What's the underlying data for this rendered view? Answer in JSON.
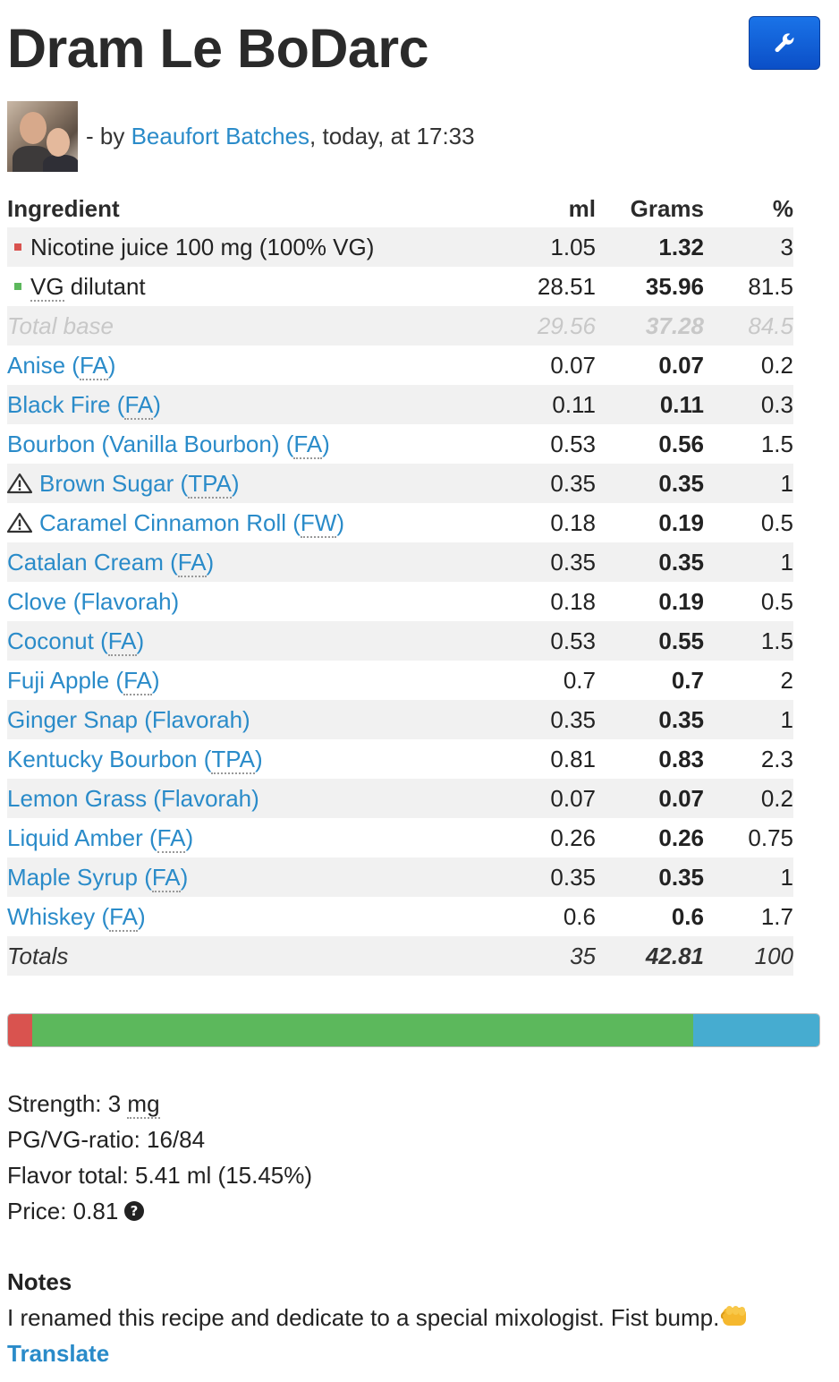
{
  "recipe": {
    "title": "Dram Le BoDarc",
    "by_prefix": "- by",
    "author": "Beaufort Batches",
    "when": ", today, at 17:33"
  },
  "table": {
    "headers": {
      "ingredient": "Ingredient",
      "ml": "ml",
      "grams": "Grams",
      "percent": "%"
    },
    "base_rows": [
      {
        "name": "Nicotine juice 100 mg (100% VG)",
        "ml": "1.05",
        "grams": "1.32",
        "percent": "3",
        "color": "#d9534f"
      },
      {
        "name_pre": "",
        "abbr": "VG",
        "name_post": " dilutant",
        "ml": "28.51",
        "grams": "35.96",
        "percent": "81.5",
        "color": "#5cb85c"
      }
    ],
    "total_base": {
      "label": "Total base",
      "ml": "29.56",
      "grams": "37.28",
      "percent": "84.5"
    },
    "flavors": [
      {
        "name": "Anise",
        "vendor": "FA",
        "ml": "0.07",
        "grams": "0.07",
        "percent": "0.2",
        "warning": false,
        "abbr": true
      },
      {
        "name": "Black Fire",
        "vendor": "FA",
        "ml": "0.11",
        "grams": "0.11",
        "percent": "0.3",
        "warning": false,
        "abbr": true
      },
      {
        "name": "Bourbon (Vanilla Bourbon)",
        "vendor": "FA",
        "ml": "0.53",
        "grams": "0.56",
        "percent": "1.5",
        "warning": false,
        "abbr": true
      },
      {
        "name": "Brown Sugar",
        "vendor": "TPA",
        "ml": "0.35",
        "grams": "0.35",
        "percent": "1",
        "warning": true,
        "abbr": true
      },
      {
        "name": "Caramel Cinnamon Roll",
        "vendor": "FW",
        "ml": "0.18",
        "grams": "0.19",
        "percent": "0.5",
        "warning": true,
        "abbr": true
      },
      {
        "name": "Catalan Cream",
        "vendor": "FA",
        "ml": "0.35",
        "grams": "0.35",
        "percent": "1",
        "warning": false,
        "abbr": true
      },
      {
        "name": "Clove",
        "vendor": "Flavorah",
        "ml": "0.18",
        "grams": "0.19",
        "percent": "0.5",
        "warning": false,
        "abbr": false
      },
      {
        "name": "Coconut",
        "vendor": "FA",
        "ml": "0.53",
        "grams": "0.55",
        "percent": "1.5",
        "warning": false,
        "abbr": true
      },
      {
        "name": "Fuji Apple",
        "vendor": "FA",
        "ml": "0.7",
        "grams": "0.7",
        "percent": "2",
        "warning": false,
        "abbr": true
      },
      {
        "name": "Ginger Snap",
        "vendor": "Flavorah",
        "ml": "0.35",
        "grams": "0.35",
        "percent": "1",
        "warning": false,
        "abbr": false
      },
      {
        "name": "Kentucky Bourbon",
        "vendor": "TPA",
        "ml": "0.81",
        "grams": "0.83",
        "percent": "2.3",
        "warning": false,
        "abbr": true
      },
      {
        "name": "Lemon Grass",
        "vendor": "Flavorah",
        "ml": "0.07",
        "grams": "0.07",
        "percent": "0.2",
        "warning": false,
        "abbr": false
      },
      {
        "name": "Liquid Amber",
        "vendor": "FA",
        "ml": "0.26",
        "grams": "0.26",
        "percent": "0.75",
        "warning": false,
        "abbr": true
      },
      {
        "name": "Maple Syrup",
        "vendor": "FA",
        "ml": "0.35",
        "grams": "0.35",
        "percent": "1",
        "warning": false,
        "abbr": true
      },
      {
        "name": "Whiskey",
        "vendor": "FA",
        "ml": "0.6",
        "grams": "0.6",
        "percent": "1.7",
        "warning": false,
        "abbr": true
      }
    ],
    "totals": {
      "label": "Totals",
      "ml": "35",
      "grams": "42.81",
      "percent": "100"
    }
  },
  "mix_bar": [
    {
      "segment": "nicotine",
      "percent": 3,
      "color": "#d9534f"
    },
    {
      "segment": "vg",
      "percent": 81.5,
      "color": "#5cb85c"
    },
    {
      "segment": "flavor",
      "percent": 15.5,
      "color": "#46acd0"
    }
  ],
  "stats": {
    "strength_label": "Strength: 3 ",
    "strength_unit": "mg",
    "ratio": "PG/VG-ratio: 16/84",
    "flavor_total": "Flavor total: 5.41 ml (15.45%)",
    "price": "Price: 0.81"
  },
  "notes": {
    "heading": "Notes",
    "text": "I renamed this recipe and dedicate to a special mixologist. Fist bump.",
    "translate": "Translate"
  },
  "icons": {
    "edit": "wrench-icon",
    "warning": "warning-triangle-icon",
    "help": "question-circle-icon",
    "fist": "fist-bump-emoji"
  }
}
